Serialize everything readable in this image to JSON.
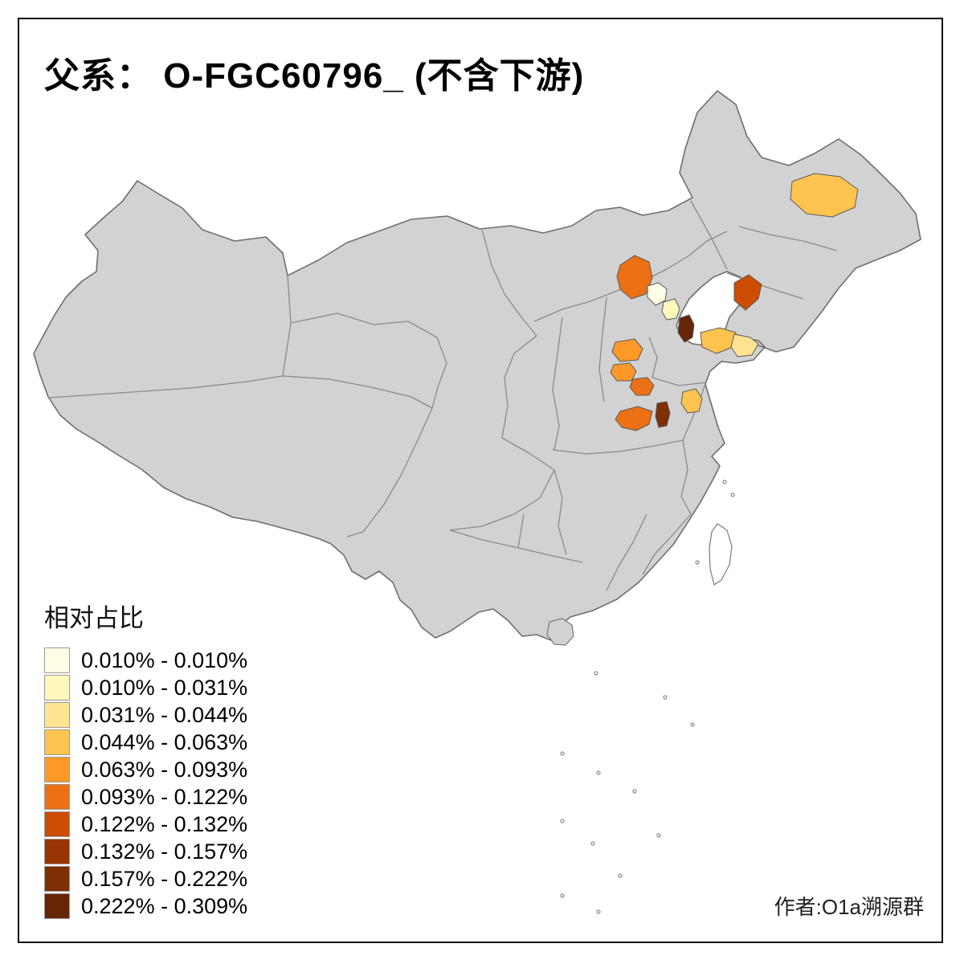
{
  "title": "父系： O-FGC60796_ (不含下游)",
  "credit": "作者:O1a溯源群",
  "legend": {
    "title": "相对占比",
    "entries": [
      {
        "label": "0.010% - 0.010%",
        "color": "#FFFFE5"
      },
      {
        "label": "0.010% - 0.031%",
        "color": "#FFF7BC"
      },
      {
        "label": "0.031% - 0.044%",
        "color": "#FEE391"
      },
      {
        "label": "0.044% - 0.063%",
        "color": "#FEC44F"
      },
      {
        "label": "0.063% - 0.093%",
        "color": "#FE9929"
      },
      {
        "label": "0.093% - 0.122%",
        "color": "#EC7014"
      },
      {
        "label": "0.122% - 0.132%",
        "color": "#CC4C02"
      },
      {
        "label": "0.132% - 0.157%",
        "color": "#993404"
      },
      {
        "label": "0.157% - 0.222%",
        "color": "#7E2F05"
      },
      {
        "label": "0.222% - 0.309%",
        "color": "#662506"
      }
    ]
  },
  "map": {
    "background": "#FFFFFF",
    "base_fill": "#D2D2D2",
    "highlights": [
      {
        "area": "northeast-heilongjiang",
        "color": "#FEC44F"
      },
      {
        "area": "north-hebei-chengde",
        "color": "#EC7014"
      },
      {
        "area": "liaodong-peninsula",
        "color": "#CC4C02"
      },
      {
        "area": "beijing",
        "color": "#FFFFE5"
      },
      {
        "area": "langfang-tianjin-north",
        "color": "#FFF7BC"
      },
      {
        "area": "tianjin-south-dark",
        "color": "#662506"
      },
      {
        "area": "shandong-peninsula-west",
        "color": "#FEC44F"
      },
      {
        "area": "shandong-peninsula-east",
        "color": "#FEE391"
      },
      {
        "area": "south-hebei-1",
        "color": "#FE9929"
      },
      {
        "area": "south-hebei-2",
        "color": "#FE9929"
      },
      {
        "area": "north-henan",
        "color": "#EC7014"
      },
      {
        "area": "southwest-shandong",
        "color": "#FEC44F"
      },
      {
        "area": "central-henan",
        "color": "#EC7014"
      },
      {
        "area": "east-henan-dark",
        "color": "#7E2F05"
      }
    ]
  }
}
